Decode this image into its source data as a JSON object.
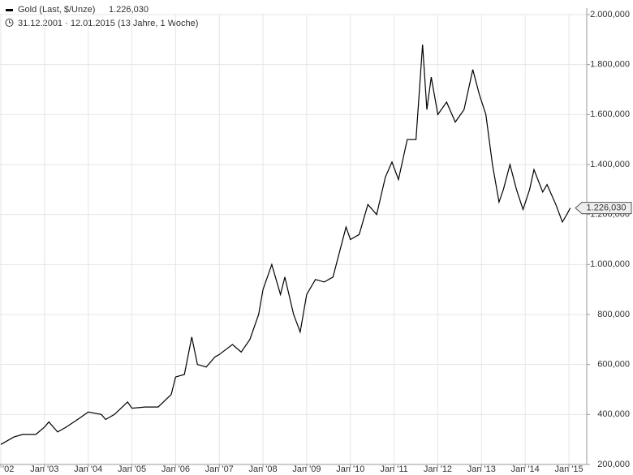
{
  "chart_data": {
    "type": "line",
    "title": "Gold (Last, $/Unze)",
    "subtitle": "31.12.2001 · 12.01.2015 (13 Jahre, 1 Woche)",
    "current": {
      "value": 1226.03,
      "label": "1.226,030"
    },
    "xlim": [
      2001.98,
      2015.42
    ],
    "xticks": [
      {
        "value": 2002,
        "label": "'02"
      },
      {
        "value": 2003,
        "label": "Jan '03"
      },
      {
        "value": 2004,
        "label": "Jan '04"
      },
      {
        "value": 2005,
        "label": "Jan '05"
      },
      {
        "value": 2006,
        "label": "Jan '06"
      },
      {
        "value": 2007,
        "label": "Jan '07"
      },
      {
        "value": 2008,
        "label": "Jan '08"
      },
      {
        "value": 2009,
        "label": "Jan '09"
      },
      {
        "value": 2010,
        "label": "Jan '10"
      },
      {
        "value": 2011,
        "label": "Jan '11"
      },
      {
        "value": 2012,
        "label": "Jan '12"
      },
      {
        "value": 2013,
        "label": "Jan '13"
      },
      {
        "value": 2014,
        "label": "Jan '14"
      },
      {
        "value": 2015,
        "label": "Jan '15"
      }
    ],
    "ylim": [
      200,
      2020
    ],
    "yticks": [
      {
        "value": 200,
        "label": "200,000"
      },
      {
        "value": 400,
        "label": "400,000"
      },
      {
        "value": 600,
        "label": "600,000"
      },
      {
        "value": 800,
        "label": "800,000"
      },
      {
        "value": 1000,
        "label": "1.000,000"
      },
      {
        "value": 1200,
        "label": "1.200,000"
      },
      {
        "value": 1400,
        "label": "1.400,000"
      },
      {
        "value": 1600,
        "label": "1.600,000"
      },
      {
        "value": 1800,
        "label": "1.800,000"
      },
      {
        "value": 2000,
        "label": "2.000,000"
      }
    ],
    "grid": true,
    "series": [
      {
        "name": "Gold",
        "color": "#000000",
        "x": [
          2002.0,
          2002.3,
          2002.5,
          2002.8,
          2003.0,
          2003.1,
          2003.3,
          2003.5,
          2003.8,
          2004.0,
          2004.3,
          2004.4,
          2004.6,
          2004.9,
          2005.0,
          2005.3,
          2005.6,
          2005.9,
          2006.0,
          2006.2,
          2006.37,
          2006.5,
          2006.7,
          2006.9,
          2007.0,
          2007.3,
          2007.5,
          2007.7,
          2007.9,
          2008.0,
          2008.2,
          2008.4,
          2008.5,
          2008.7,
          2008.85,
          2009.0,
          2009.2,
          2009.4,
          2009.6,
          2009.9,
          2010.0,
          2010.2,
          2010.4,
          2010.6,
          2010.8,
          2010.95,
          2011.1,
          2011.3,
          2011.5,
          2011.65,
          2011.75,
          2011.85,
          2012.0,
          2012.2,
          2012.4,
          2012.6,
          2012.8,
          2012.95,
          2013.1,
          2013.25,
          2013.4,
          2013.5,
          2013.65,
          2013.8,
          2013.95,
          2014.1,
          2014.2,
          2014.4,
          2014.5,
          2014.7,
          2014.85,
          2014.95,
          2015.03
        ],
        "values": [
          280,
          310,
          320,
          320,
          350,
          370,
          330,
          350,
          385,
          410,
          400,
          380,
          400,
          450,
          425,
          430,
          430,
          480,
          550,
          560,
          710,
          600,
          590,
          630,
          640,
          680,
          650,
          700,
          800,
          900,
          1000,
          880,
          950,
          800,
          730,
          880,
          940,
          930,
          950,
          1150,
          1100,
          1120,
          1240,
          1200,
          1350,
          1410,
          1340,
          1500,
          1500,
          1880,
          1620,
          1750,
          1600,
          1650,
          1570,
          1620,
          1780,
          1680,
          1600,
          1400,
          1250,
          1300,
          1400,
          1300,
          1220,
          1300,
          1380,
          1290,
          1320,
          1240,
          1170,
          1200,
          1226.03
        ]
      }
    ]
  }
}
